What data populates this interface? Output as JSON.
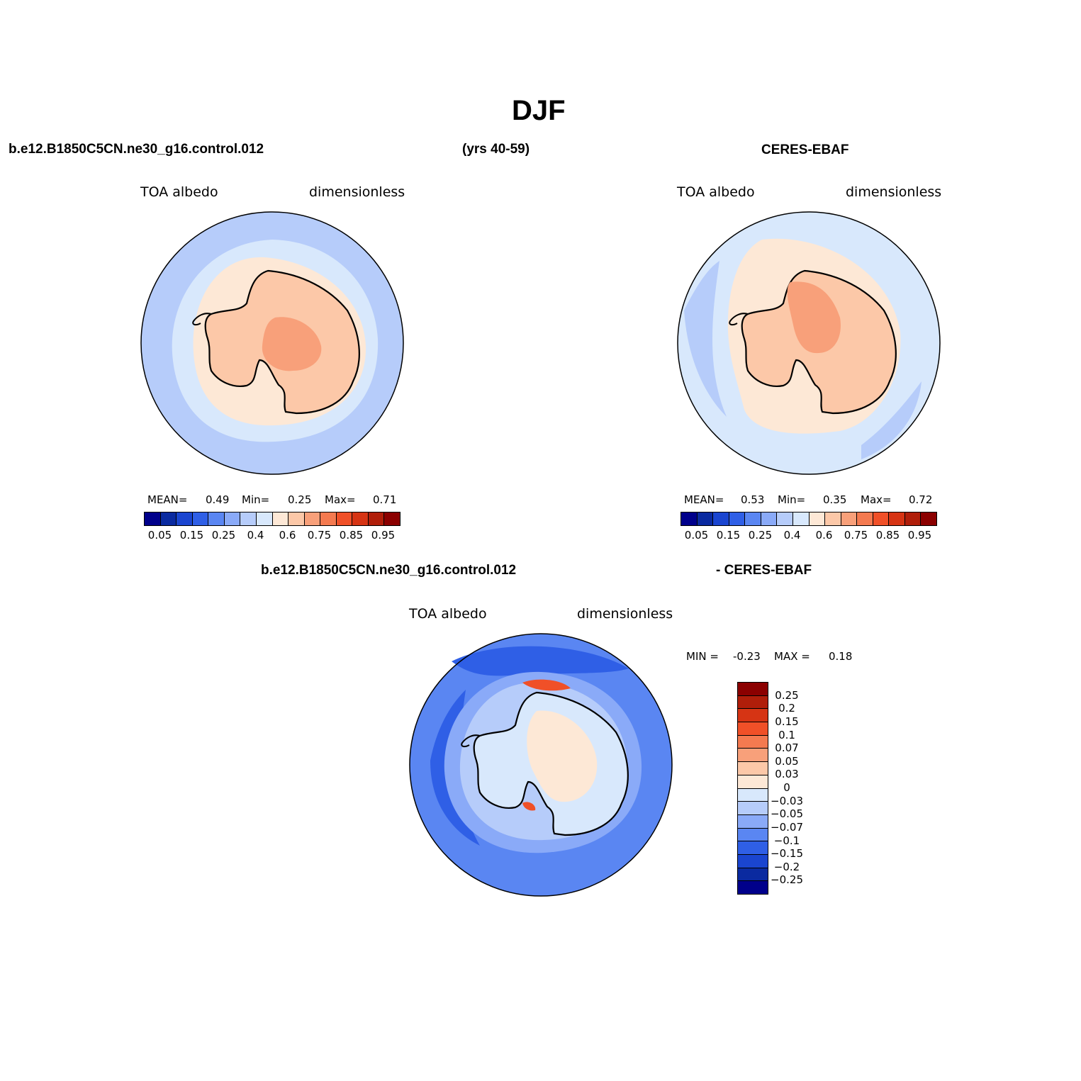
{
  "title": "DJF",
  "top_left": {
    "case_name": "b.e12.B1850C5CN.ne30_g16.control.012",
    "years": "(yrs 40-59)",
    "variable": "TOA albedo",
    "units": "dimensionless",
    "stats": {
      "mean_label": "MEAN=",
      "mean": "0.49",
      "min_label": "Min=",
      "min": "0.25",
      "max_label": "Max=",
      "max": "0.71"
    }
  },
  "top_right": {
    "case_name": "CERES-EBAF",
    "variable": "TOA albedo",
    "units": "dimensionless",
    "stats": {
      "mean_label": "MEAN=",
      "mean": "0.53",
      "min_label": "Min=",
      "min": "0.35",
      "max_label": "Max=",
      "max": "0.72"
    }
  },
  "bottom": {
    "case_name": "b.e12.B1850C5CN.ne30_g16.control.012",
    "ref_name": "- CERES-EBAF",
    "variable": "TOA albedo",
    "units": "dimensionless",
    "minmax": {
      "min_label": "MIN =",
      "min": "-0.23",
      "max_label": "MAX =",
      "max": "0.18"
    }
  },
  "colorbar_abs": {
    "colors": [
      "#00008b",
      "#0a2aa0",
      "#1a45d0",
      "#2f5fe6",
      "#5a86f2",
      "#8aaaf8",
      "#b6ccfa",
      "#d8e8fc",
      "#fde8d6",
      "#fcc8a8",
      "#f8a07a",
      "#f47a50",
      "#f05028",
      "#d63414",
      "#b01e0a",
      "#8b0000"
    ],
    "labels": [
      "0.05",
      "0.15",
      "0.25",
      "0.4",
      "0.6",
      "0.75",
      "0.85",
      "0.95"
    ]
  },
  "colorbar_diff": {
    "colors": [
      "#8b0000",
      "#b01e0a",
      "#d63414",
      "#f05028",
      "#f47a50",
      "#f8a07a",
      "#fcc8a8",
      "#fde8d6",
      "#d8e8fc",
      "#b6ccfa",
      "#8aaaf8",
      "#5a86f2",
      "#2f5fe6",
      "#1a45d0",
      "#0a2aa0",
      "#00008b"
    ],
    "labels": [
      "0.25",
      "0.2",
      "0.15",
      "0.1",
      "0.07",
      "0.05",
      "0.03",
      "0",
      "-0.03",
      "-0.05",
      "-0.07",
      "-0.1",
      "-0.15",
      "-0.2",
      "-0.25"
    ]
  },
  "map_colors": {
    "ocean_outer": "#b6ccfa",
    "ocean_inner": "#d8e8fc",
    "sea_ice": "#fde8d6",
    "continent": "#fcc8a8",
    "plateau": "#f8a07a",
    "diff_ocean": "#2f5fe6",
    "diff_mid": "#5a86f2",
    "diff_ring": "#8aaaf8",
    "diff_land": "#d8e8fc",
    "diff_warm": "#fde8d6",
    "diff_hot": "#f05028"
  }
}
